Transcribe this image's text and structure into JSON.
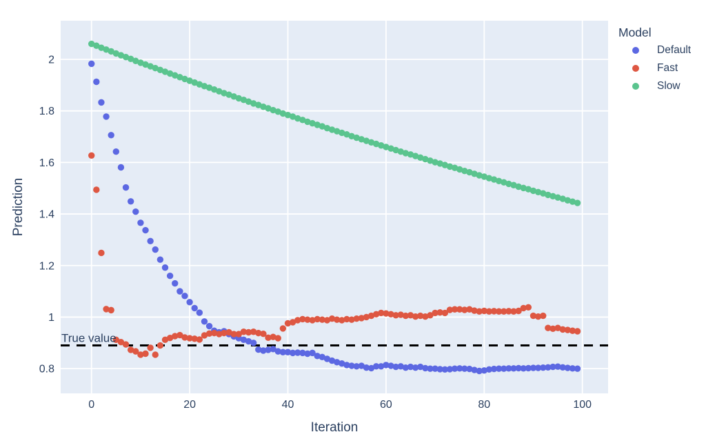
{
  "figure": {
    "xaxis_title": "Iteration",
    "yaxis_title": "Prediction",
    "annotation": "True value",
    "legend": {
      "title": "Model",
      "entries": [
        {
          "label": "Default"
        },
        {
          "label": "Fast"
        },
        {
          "label": "Slow"
        }
      ]
    }
  },
  "chart_data": {
    "type": "scatter",
    "title": "",
    "xlabel": "Iteration",
    "ylabel": "Prediction",
    "legend_title": "Model",
    "legend_position": "right-top",
    "grid": true,
    "plot_bg": "#E5ECF6",
    "grid_color": "#FFFFFF",
    "text_color": "#2A3F5F",
    "marker_radius": 4.7,
    "xlim": [
      -6.28,
      105.24
    ],
    "ylim": [
      0.704,
      2.15
    ],
    "x_ticks": [
      0,
      20,
      40,
      60,
      80,
      100
    ],
    "y_ticks": [
      "0.8",
      "1",
      "1.2",
      "1.4",
      "1.6",
      "1.8",
      "2"
    ],
    "reference_line": {
      "label": "True value",
      "value": 0.89,
      "color": "#000000",
      "style": "dashed",
      "width": 3
    },
    "x": [
      0,
      1,
      2,
      3,
      4,
      5,
      6,
      7,
      8,
      9,
      10,
      11,
      12,
      13,
      14,
      15,
      16,
      17,
      18,
      19,
      20,
      21,
      22,
      23,
      24,
      25,
      26,
      27,
      28,
      29,
      30,
      31,
      32,
      33,
      34,
      35,
      36,
      37,
      38,
      39,
      40,
      41,
      42,
      43,
      44,
      45,
      46,
      47,
      48,
      49,
      50,
      51,
      52,
      53,
      54,
      55,
      56,
      57,
      58,
      59,
      60,
      61,
      62,
      63,
      64,
      65,
      66,
      67,
      68,
      69,
      70,
      71,
      72,
      73,
      74,
      75,
      76,
      77,
      78,
      79,
      80,
      81,
      82,
      83,
      84,
      85,
      86,
      87,
      88,
      89,
      90,
      91,
      92,
      93,
      94,
      95,
      96,
      97,
      98,
      99
    ],
    "series": [
      {
        "name": "Default",
        "color": "#5C68E2",
        "values": [
          1.983,
          1.913,
          1.833,
          1.778,
          1.706,
          1.642,
          1.581,
          1.503,
          1.449,
          1.409,
          1.366,
          1.337,
          1.295,
          1.262,
          1.223,
          1.192,
          1.16,
          1.131,
          1.1,
          1.082,
          1.058,
          1.035,
          1.017,
          0.983,
          0.965,
          0.947,
          0.941,
          0.945,
          0.934,
          0.925,
          0.918,
          0.912,
          0.906,
          0.9,
          0.874,
          0.87,
          0.873,
          0.876,
          0.867,
          0.864,
          0.864,
          0.861,
          0.862,
          0.861,
          0.858,
          0.861,
          0.849,
          0.845,
          0.838,
          0.831,
          0.825,
          0.82,
          0.814,
          0.811,
          0.809,
          0.811,
          0.804,
          0.802,
          0.809,
          0.809,
          0.814,
          0.811,
          0.807,
          0.809,
          0.804,
          0.807,
          0.804,
          0.807,
          0.802,
          0.8,
          0.8,
          0.798,
          0.797,
          0.798,
          0.8,
          0.801,
          0.8,
          0.799,
          0.795,
          0.791,
          0.793,
          0.797,
          0.799,
          0.8,
          0.8,
          0.801,
          0.801,
          0.802,
          0.801,
          0.802,
          0.803,
          0.803,
          0.804,
          0.805,
          0.807,
          0.808,
          0.805,
          0.803,
          0.801,
          0.8
        ]
      },
      {
        "name": "Fast",
        "color": "#DE5742",
        "values": [
          1.627,
          1.494,
          1.249,
          1.031,
          1.027,
          0.912,
          0.903,
          0.894,
          0.873,
          0.867,
          0.854,
          0.858,
          0.881,
          0.854,
          0.89,
          0.912,
          0.919,
          0.926,
          0.93,
          0.921,
          0.918,
          0.916,
          0.913,
          0.929,
          0.936,
          0.938,
          0.934,
          0.938,
          0.941,
          0.934,
          0.934,
          0.943,
          0.941,
          0.943,
          0.938,
          0.935,
          0.92,
          0.923,
          0.918,
          0.956,
          0.976,
          0.98,
          0.988,
          0.992,
          0.99,
          0.988,
          0.992,
          0.99,
          0.988,
          0.994,
          0.99,
          0.988,
          0.992,
          0.99,
          0.994,
          0.996,
          1.0,
          1.005,
          1.011,
          1.016,
          1.014,
          1.011,
          1.007,
          1.009,
          1.005,
          1.007,
          1.002,
          1.005,
          1.002,
          1.007,
          1.016,
          1.018,
          1.016,
          1.028,
          1.03,
          1.03,
          1.028,
          1.03,
          1.025,
          1.022,
          1.024,
          1.022,
          1.023,
          1.022,
          1.022,
          1.023,
          1.022,
          1.024,
          1.035,
          1.038,
          1.005,
          1.002,
          1.005,
          0.958,
          0.955,
          0.958,
          0.952,
          0.95,
          0.947,
          0.945
        ]
      },
      {
        "name": "Slow",
        "color": "#5AC48E",
        "values": [
          2.06,
          2.053,
          2.045,
          2.038,
          2.031,
          2.023,
          2.016,
          2.009,
          2.002,
          1.994,
          1.987,
          1.98,
          1.973,
          1.966,
          1.959,
          1.952,
          1.945,
          1.938,
          1.931,
          1.924,
          1.917,
          1.91,
          1.903,
          1.896,
          1.89,
          1.883,
          1.876,
          1.869,
          1.863,
          1.856,
          1.849,
          1.843,
          1.836,
          1.829,
          1.823,
          1.816,
          1.81,
          1.803,
          1.797,
          1.79,
          1.784,
          1.778,
          1.771,
          1.765,
          1.758,
          1.752,
          1.746,
          1.74,
          1.733,
          1.727,
          1.721,
          1.715,
          1.709,
          1.702,
          1.696,
          1.69,
          1.684,
          1.678,
          1.672,
          1.666,
          1.66,
          1.654,
          1.648,
          1.642,
          1.636,
          1.631,
          1.625,
          1.619,
          1.613,
          1.607,
          1.601,
          1.596,
          1.59,
          1.584,
          1.579,
          1.573,
          1.567,
          1.562,
          1.556,
          1.55,
          1.545,
          1.539,
          1.534,
          1.528,
          1.523,
          1.517,
          1.512,
          1.506,
          1.501,
          1.496,
          1.49,
          1.485,
          1.48,
          1.474,
          1.469,
          1.464,
          1.459,
          1.453,
          1.448,
          1.443
        ]
      }
    ]
  }
}
